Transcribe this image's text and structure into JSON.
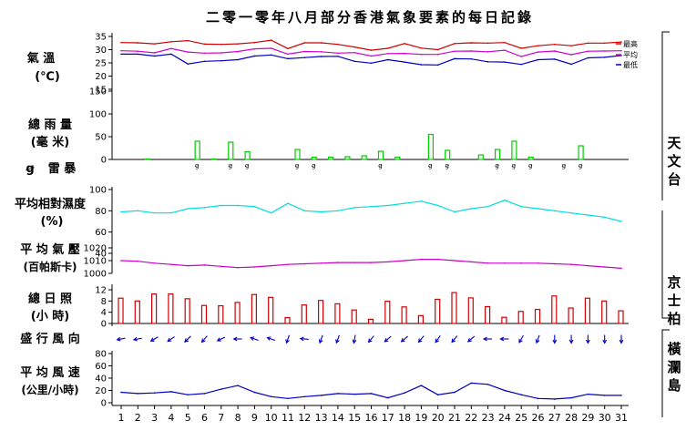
{
  "title": "二零一零年八月部分香港氣象要素的每日記錄",
  "colors": {
    "max": "#d00000",
    "mean": "#d000d0",
    "min": "#0000c0",
    "rain": "#00cc00",
    "humidity": "#00dddd",
    "pressure": "#cc00cc",
    "sunshine": "#d00000",
    "wind": "#0000c0",
    "axis": "#000000"
  },
  "panels": {
    "temperature": {
      "label1": "氣 溫",
      "label2": "(℃)",
      "ticks": [
        "35",
        "30",
        "25",
        "20",
        "15"
      ]
    },
    "rainfall": {
      "label1": "總 雨 量",
      "label2": "(毫 米)",
      "ticks": [
        "150",
        "100",
        "50",
        "0"
      ]
    },
    "thunder": {
      "label": "雷 暴",
      "symbol": "ꞡ"
    },
    "humidity": {
      "label1": "平均相對濕度",
      "label2": "(%)",
      "ticks": [
        "100",
        "80",
        "60",
        "40"
      ]
    },
    "pressure": {
      "label1": "平 均 氣 壓",
      "label2": "(百帕斯卡)",
      "ticks": [
        "1020",
        "1010",
        "1000"
      ]
    },
    "sunshine": {
      "label1": "總 日 照",
      "label2": "(小 時)",
      "ticks": [
        "12",
        "8",
        "4",
        "0"
      ]
    },
    "wind_dir": {
      "label": "盛 行 風 向"
    },
    "wind_speed": {
      "label1": "平 均 風 速",
      "label2": "(公里/小時)",
      "ticks": [
        "80",
        "60",
        "40",
        "20",
        "0"
      ]
    }
  },
  "legend": {
    "max": "最高",
    "mean": "平均",
    "min": "最低"
  },
  "stations": {
    "hko": "天文台",
    "kp": "京士柏",
    "wgl": "橫瀾島"
  },
  "chart_data": {
    "type": "line",
    "x": [
      1,
      2,
      3,
      4,
      5,
      6,
      7,
      8,
      9,
      10,
      11,
      12,
      13,
      14,
      15,
      16,
      17,
      18,
      19,
      20,
      21,
      22,
      23,
      24,
      25,
      26,
      27,
      28,
      29,
      30,
      31
    ],
    "x_tick_labels": [
      "1",
      "2",
      "3",
      "4",
      "5",
      "6",
      "7",
      "8",
      "9",
      "10",
      "11",
      "12",
      "13",
      "14",
      "15",
      "16",
      "17",
      "18",
      "19",
      "20",
      "21",
      "22",
      "23",
      "24",
      "25",
      "26",
      "27",
      "28",
      "29",
      "30",
      "31"
    ],
    "temperature": {
      "ylim": [
        15,
        36
      ],
      "series": [
        {
          "name": "最高",
          "values": [
            32.7,
            32.6,
            32.2,
            33,
            33.4,
            32.1,
            32,
            32.2,
            32.7,
            33.6,
            30.4,
            32.6,
            32.6,
            32,
            31,
            29.8,
            30.5,
            32.3,
            30.6,
            30,
            32.3,
            32.6,
            32.5,
            32.7,
            30.5,
            31.5,
            32,
            31.5,
            32.5,
            32.5,
            32.9
          ]
        },
        {
          "name": "平均",
          "values": [
            29.6,
            29.4,
            28.8,
            30.4,
            29.1,
            28.7,
            28.8,
            29.3,
            30.3,
            30.5,
            28.3,
            29.3,
            29.2,
            28.7,
            28.9,
            27.6,
            28.5,
            28.6,
            28.2,
            28.2,
            29.4,
            29.5,
            29.2,
            29.8,
            27.4,
            29.1,
            29.5,
            28.1,
            29.4,
            29.5,
            29.6
          ]
        },
        {
          "name": "最低",
          "values": [
            28.3,
            28.3,
            27.6,
            28.3,
            24.6,
            25.6,
            25.8,
            26.2,
            27.6,
            28,
            26.6,
            27,
            27.4,
            27.5,
            25.6,
            24.9,
            26.2,
            25.3,
            24.3,
            24.2,
            26.6,
            26.5,
            25.4,
            25.3,
            24.4,
            26.2,
            26.4,
            24.5,
            26.9,
            27.1,
            27.8
          ]
        }
      ]
    },
    "rainfall": {
      "ylim": [
        0,
        150
      ],
      "values": [
        0,
        1,
        0,
        0,
        40,
        1,
        38,
        17,
        0,
        0,
        22,
        5,
        5,
        6,
        8,
        18,
        5,
        0,
        55,
        20,
        0,
        10,
        22,
        40,
        5,
        0,
        0,
        30,
        0,
        0,
        0
      ]
    },
    "thunder_days": [
      5,
      7,
      8,
      11,
      12,
      16,
      19,
      20,
      23,
      24,
      25,
      27,
      28
    ],
    "humidity": {
      "ylim": [
        40,
        100
      ],
      "values": [
        79,
        80,
        78,
        78,
        82,
        83,
        85,
        85,
        84,
        78,
        87,
        80,
        79,
        80,
        83,
        84,
        85,
        87,
        89,
        85,
        79,
        82,
        84,
        90,
        84,
        82,
        80,
        78,
        76,
        74,
        70
      ]
    },
    "pressure": {
      "ylim": [
        1000,
        1020
      ],
      "values": [
        1010,
        1009.5,
        1008,
        1007,
        1006,
        1006.5,
        1005.5,
        1004.5,
        1005,
        1006,
        1007,
        1007.5,
        1008,
        1008.5,
        1008.5,
        1008.5,
        1009,
        1010,
        1011,
        1011,
        1010,
        1009,
        1008,
        1008,
        1008,
        1008,
        1007.5,
        1007,
        1006,
        1005,
        1004
      ]
    },
    "sunshine": {
      "ylim": [
        0,
        14
      ],
      "values": [
        9,
        8,
        10.5,
        10.5,
        8.8,
        6.4,
        6.3,
        7.5,
        10.3,
        9.3,
        2.1,
        6.6,
        8.2,
        7,
        4.8,
        1.5,
        7.9,
        5.9,
        2.8,
        8.6,
        11,
        9.1,
        6,
        2.2,
        4.3,
        5,
        9.8,
        5.5,
        9,
        8,
        4.5
      ]
    },
    "wind_direction_deg": [
      80,
      80,
      60,
      55,
      45,
      40,
      65,
      90,
      110,
      110,
      20,
      95,
      20,
      20,
      10,
      40,
      50,
      50,
      40,
      35,
      40,
      50,
      90,
      90,
      30,
      20,
      360,
      360,
      360,
      360,
      360
    ],
    "wind_speed": {
      "ylim": [
        0,
        80
      ],
      "values": [
        17,
        15,
        16,
        18,
        13,
        15,
        22,
        28,
        17,
        10,
        7,
        10,
        12,
        15,
        14,
        15,
        8,
        16,
        28,
        13,
        17,
        32,
        30,
        20,
        13,
        7,
        6,
        8,
        14,
        12,
        12
      ]
    }
  }
}
